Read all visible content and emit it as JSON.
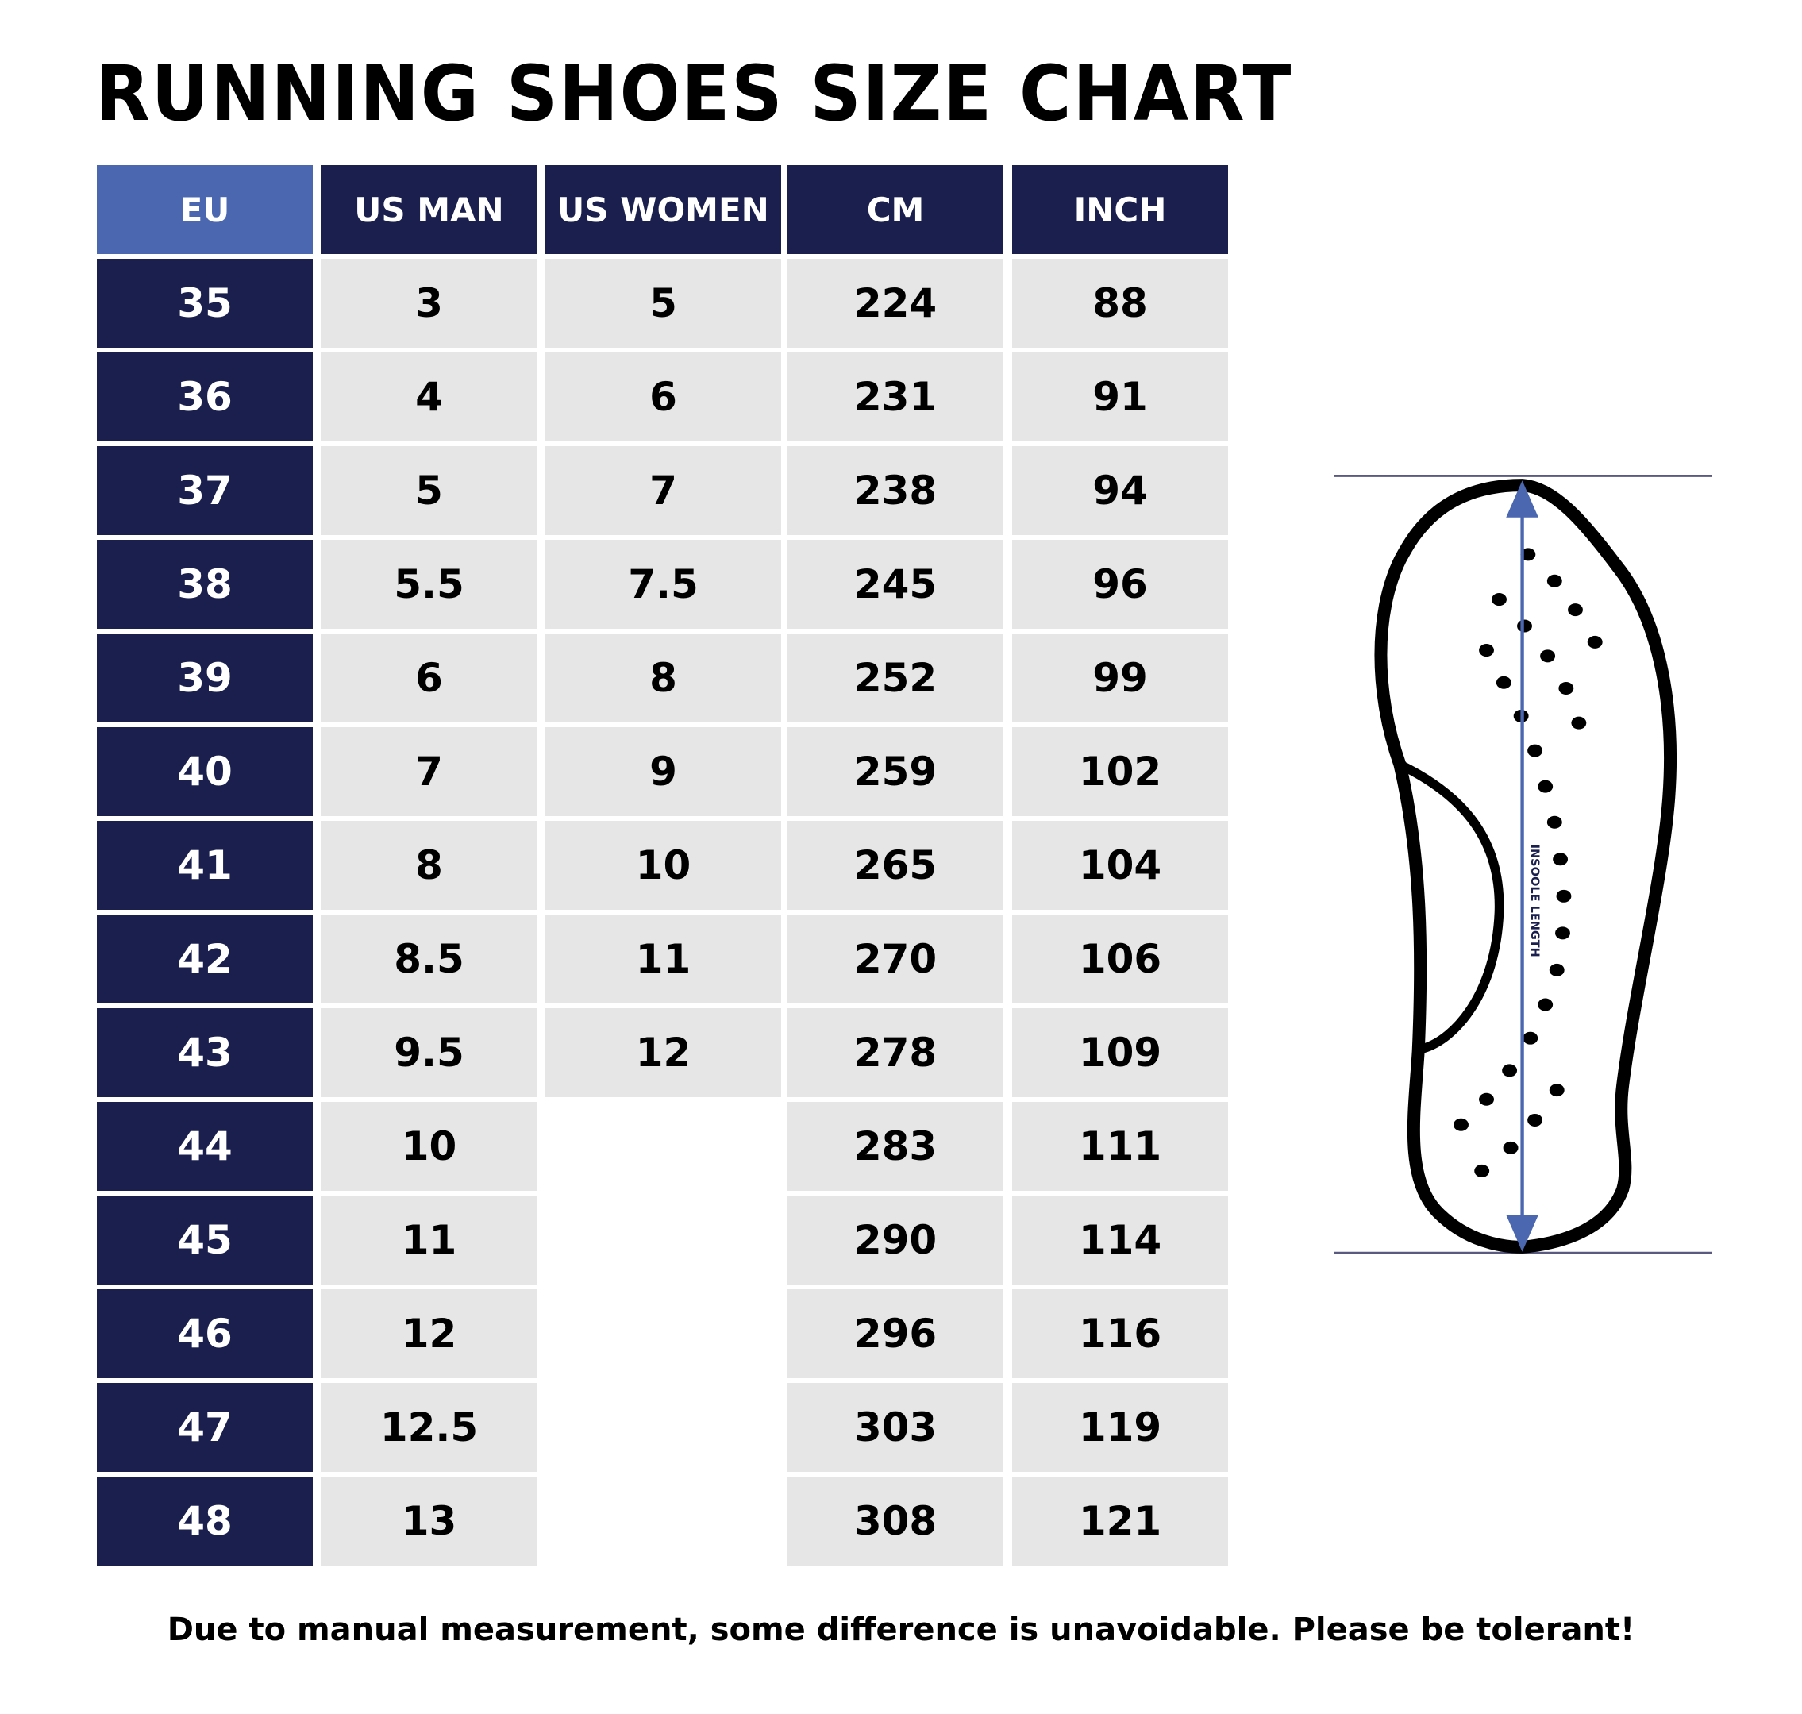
{
  "title": "RUNNING SHOES SIZE CHART",
  "chart_data": {
    "type": "table",
    "title": "RUNNING SHOES SIZE CHART",
    "columns": [
      "EU",
      "US MAN",
      "US WOMEN",
      "CM",
      "INCH"
    ],
    "rows": [
      [
        "35",
        "3",
        "5",
        "224",
        "88"
      ],
      [
        "36",
        "4",
        "6",
        "231",
        "91"
      ],
      [
        "37",
        "5",
        "7",
        "238",
        "94"
      ],
      [
        "38",
        "5.5",
        "7.5",
        "245",
        "96"
      ],
      [
        "39",
        "6",
        "8",
        "252",
        "99"
      ],
      [
        "40",
        "7",
        "9",
        "259",
        "102"
      ],
      [
        "41",
        "8",
        "10",
        "265",
        "104"
      ],
      [
        "42",
        "8.5",
        "11",
        "270",
        "106"
      ],
      [
        "43",
        "9.5",
        "12",
        "278",
        "109"
      ],
      [
        "44",
        "10",
        "",
        "283",
        "111"
      ],
      [
        "45",
        "11",
        "",
        "290",
        "114"
      ],
      [
        "46",
        "12",
        "",
        "296",
        "116"
      ],
      [
        "47",
        "12.5",
        "",
        "303",
        "119"
      ],
      [
        "48",
        "13",
        "",
        "308",
        "121"
      ]
    ]
  },
  "diagram": {
    "label": "INSOOLE LENGTH",
    "arrow_color": "#4a67b0",
    "outline_color": "#000000",
    "guide_color": "#5a5a80"
  },
  "colors": {
    "navy": "#1a1f4e",
    "eu_header": "#4a67b0",
    "cell": "#e6e6e6"
  },
  "footer": "Due to manual measurement, some difference is unavoidable. Please be tolerant!"
}
